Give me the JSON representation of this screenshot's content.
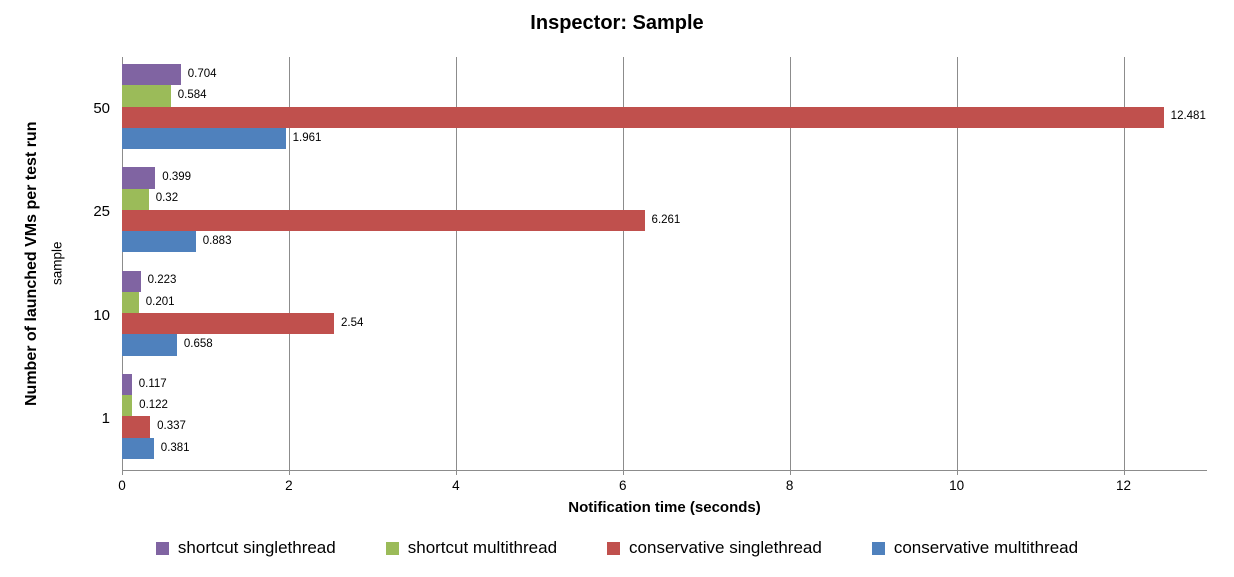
{
  "chart_data": {
    "type": "bar",
    "orientation": "horizontal",
    "title": "Inspector: Sample",
    "xlabel": "Notification time (seconds)",
    "ylabel": "Number of launched VMs per test run",
    "ylabel_inner": "sample",
    "categories": [
      "50",
      "25",
      "10",
      "1"
    ],
    "series": [
      {
        "name": "shortcut singlethread",
        "color": "#8064A2",
        "values": [
          0.704,
          0.399,
          0.223,
          0.117
        ]
      },
      {
        "name": "shortcut multithread",
        "color": "#9BBB59",
        "values": [
          0.584,
          0.32,
          0.201,
          0.122
        ]
      },
      {
        "name": "conservative singlethread",
        "color": "#C0504D",
        "values": [
          12.481,
          6.261,
          2.54,
          0.337
        ]
      },
      {
        "name": "conservative multithread",
        "color": "#4F81BD",
        "values": [
          1.961,
          0.883,
          0.658,
          0.381
        ]
      }
    ],
    "x_ticks": [
      0,
      2,
      4,
      6,
      8,
      10,
      12
    ],
    "xlim": [
      0,
      13
    ],
    "grid": true,
    "grid_color": "#8c8c8c",
    "legend_position": "bottom",
    "value_labels_shown": true
  }
}
